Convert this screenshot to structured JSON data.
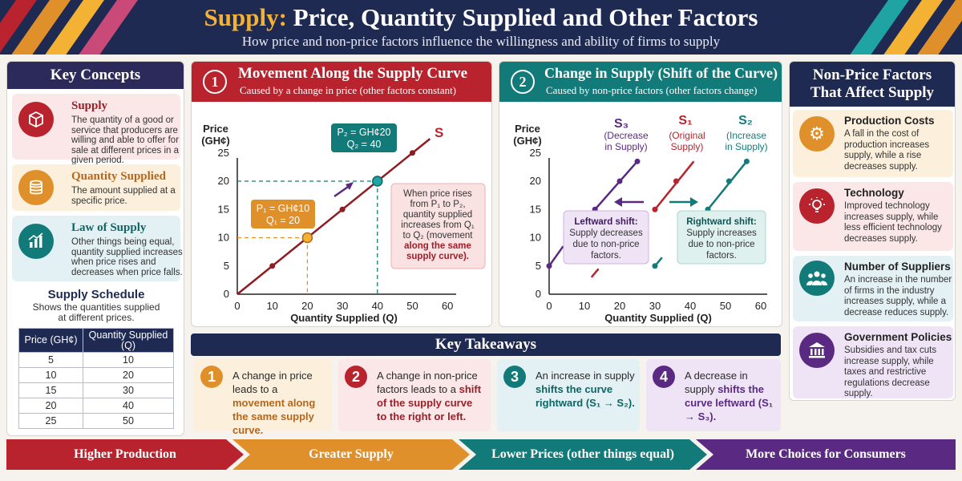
{
  "header": {
    "title_accent": "Supply:",
    "title_rest": " Price, Quantity Supplied and Other Factors",
    "subtitle": "How price and non-price factors influence the willingness and ability of firms to supply"
  },
  "key_concepts": {
    "heading": "Key Concepts",
    "items": [
      {
        "icon": "box-icon",
        "title": "Supply",
        "text": "The quantity of a good or service that producers are willing and able to offer for sale at different prices in a given period."
      },
      {
        "icon": "coins-icon",
        "title": "Quantity Supplied",
        "text": "The amount supplied at a specific price."
      },
      {
        "icon": "bar-chart-icon",
        "title": "Law of Supply",
        "text": "Other things being equal, quantity supplied increases when price rises and decreases when price falls."
      }
    ]
  },
  "schedule": {
    "title": "Supply Schedule",
    "subtitle": "Shows the quantities supplied at different prices.",
    "col_price": "Price (GH¢)",
    "col_qty": "Quantity Supplied (Q)",
    "rows": [
      {
        "price": "5",
        "qty": "10"
      },
      {
        "price": "10",
        "qty": "20"
      },
      {
        "price": "15",
        "qty": "30"
      },
      {
        "price": "20",
        "qty": "40"
      },
      {
        "price": "25",
        "qty": "50"
      }
    ]
  },
  "movement": {
    "num": "1",
    "title": "Movement Along the Supply Curve",
    "subtitle": "Caused by a change in price (other factors constant)",
    "ylabel_1": "Price",
    "ylabel_2": "(GH¢)",
    "xlabel": "Quantity Supplied (Q)",
    "curve_label": "S",
    "p1_label_1": "P₁ = GH¢10",
    "p1_label_2": "Q₁ = 20",
    "p2_label_1": "P₂ = GH¢20",
    "p2_label_2": "Q₂ = 40",
    "note_1": "When price rises",
    "note_2": "from P₁ to P₂,",
    "note_3": "quantity supplied",
    "note_4": "increases from Q₁",
    "note_5": "to Q₂ (movement",
    "note_6": "along the same",
    "note_7": "supply curve).",
    "xticks": [
      "0",
      "10",
      "20",
      "30",
      "40",
      "50",
      "60"
    ],
    "yticks": [
      "0",
      "5",
      "10",
      "15",
      "20",
      "25"
    ]
  },
  "shift": {
    "num": "2",
    "title": "Change in Supply (Shift of the Curve)",
    "subtitle": "Caused by non-price factors (other factors change)",
    "ylabel_1": "Price",
    "ylabel_2": "(GH¢)",
    "xlabel": "Quantity Supplied (Q)",
    "s3_label": "S₃",
    "s3_sub_1": "(Decrease",
    "s3_sub_2": "in Supply)",
    "s1_label": "S₁",
    "s1_sub_1": "(Original",
    "s1_sub_2": "Supply)",
    "s2_label": "S₂",
    "s2_sub_1": "(Increase",
    "s2_sub_2": "in Supply)",
    "left_1": "Leftward shift:",
    "left_2": "Supply decreases",
    "left_3": "due to non-price",
    "left_4": "factors.",
    "right_1": "Rightward shift:",
    "right_2": "Supply increases",
    "right_3": "due to non-price",
    "right_4": "factors.",
    "xticks": [
      "0",
      "10",
      "20",
      "30",
      "40",
      "50",
      "60"
    ],
    "yticks": [
      "0",
      "5",
      "10",
      "15",
      "20",
      "25"
    ]
  },
  "nonprice": {
    "heading_1": "Non-Price Factors",
    "heading_2": "That Affect Supply",
    "items": [
      {
        "icon": "gear-icon",
        "title": "Production Costs",
        "text": "A fall in the cost of production increases supply, while a rise decreases supply."
      },
      {
        "icon": "lightbulb-icon",
        "title": "Technology",
        "text": "Improved technology increases supply, while less efficient technology decreases supply."
      },
      {
        "icon": "people-icon",
        "title": "Number of Suppliers",
        "text": "An increase in the number of firms in the industry increases supply, while a decrease reduces supply."
      },
      {
        "icon": "government-icon",
        "title": "Government Policies",
        "text": "Subsidies and tax cuts increase supply, while taxes and restrictive regulations decrease supply."
      }
    ]
  },
  "takeaways": {
    "heading": "Key Takeaways",
    "items": [
      {
        "num": "1",
        "pre": "A change in price leads to a ",
        "bold": "movement along the same supply curve."
      },
      {
        "num": "2",
        "pre": "A change in non-price factors leads to a ",
        "bold": "shift of the supply curve to the right or left."
      },
      {
        "num": "3",
        "pre": "An increase in supply ",
        "bold": "shifts the curve rightward (S₁ → S₂)."
      },
      {
        "num": "4",
        "pre": "A decrease in supply ",
        "bold": "shifts the curve leftward (S₁ → S₃)."
      }
    ]
  },
  "flow": [
    "Higher Production",
    "Greater Supply",
    "Lower Prices (other things equal)",
    "More Choices for Consumers"
  ],
  "colors": {
    "navy": "#1f2a52",
    "red": "#b8232d",
    "teal": "#137a7a",
    "purple": "#5a2a82",
    "orange": "#e0902a"
  }
}
